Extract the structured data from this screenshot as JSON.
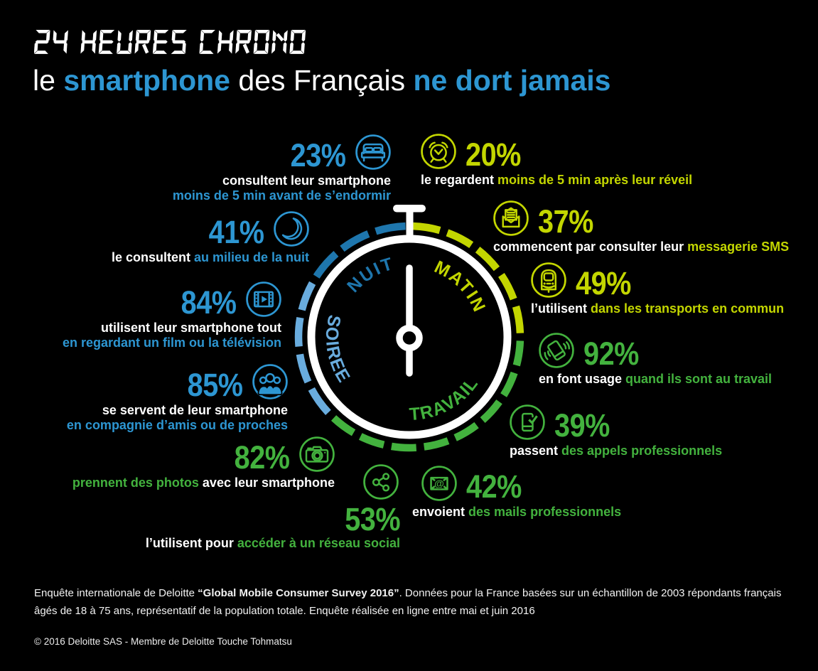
{
  "colors": {
    "blue": "#2D96D2",
    "dark_blue": "#1E76AD",
    "light_blue": "#69ACDE",
    "yellow_green": "#C3D600",
    "green": "#43B23E",
    "white": "#FFFFFF",
    "background": "#000000"
  },
  "header": {
    "title": "24 HEURES CHRONO",
    "subtitle_parts": [
      {
        "text": "le ",
        "highlight": false
      },
      {
        "text": "smartphone",
        "highlight": true
      },
      {
        "text": " des Français ",
        "highlight": false
      },
      {
        "text": "ne dort jamais",
        "highlight": true
      }
    ]
  },
  "stopwatch": {
    "labels": [
      {
        "text": "NUIT",
        "color_key": "dark_blue",
        "position": "top-left"
      },
      {
        "text": "MATIN",
        "color_key": "yellow_green",
        "position": "top-right"
      },
      {
        "text": "SOIREE",
        "color_key": "light_blue",
        "position": "bottom-left"
      },
      {
        "text": "TRAVAIL",
        "color_key": "green",
        "position": "bottom-right"
      }
    ],
    "ring_quadrants": [
      {
        "period": "NUIT",
        "color_key": "dark_blue"
      },
      {
        "period": "MATIN",
        "color_key": "yellow_green"
      },
      {
        "period": "TRAVAIL",
        "color_key": "green"
      },
      {
        "period": "SOIREE",
        "color_key": "light_blue"
      }
    ]
  },
  "stats": [
    {
      "id": "bedtime",
      "value": "23%",
      "icon": "bed-icon",
      "color_key": "blue",
      "side": "left",
      "lines": [
        [
          {
            "t": "consultent leur smartphone",
            "hl": false
          }
        ],
        [
          {
            "t": "moins de 5 min avant de s’endormir",
            "hl": true
          }
        ]
      ]
    },
    {
      "id": "midnight",
      "value": "41%",
      "icon": "moon-icon",
      "color_key": "blue",
      "side": "left",
      "lines": [
        [
          {
            "t": "le consultent ",
            "hl": false
          },
          {
            "t": "au milieu de la nuit",
            "hl": true
          }
        ]
      ]
    },
    {
      "id": "tv",
      "value": "84%",
      "icon": "film-icon",
      "color_key": "blue",
      "side": "left",
      "lines": [
        [
          {
            "t": "utilisent leur smartphone tout",
            "hl": false
          }
        ],
        [
          {
            "t": "en regardant un film ou la télévision",
            "hl": true
          }
        ]
      ]
    },
    {
      "id": "friends",
      "value": "85%",
      "icon": "people-icon",
      "color_key": "blue",
      "side": "left",
      "lines": [
        [
          {
            "t": "se servent de leur smartphone",
            "hl": false
          }
        ],
        [
          {
            "t": "en compagnie d’amis ou de proches",
            "hl": true
          }
        ]
      ]
    },
    {
      "id": "photos",
      "value": "82%",
      "icon": "camera-icon",
      "color_key": "green",
      "side": "left",
      "lines": [
        [
          {
            "t": "prennent des photos",
            "hl": true
          },
          {
            "t": " avec leur smartphone",
            "hl": false
          }
        ]
      ]
    },
    {
      "id": "social",
      "value": "53%",
      "icon": "share-icon",
      "color_key": "green",
      "side": "stack",
      "lines": [
        [
          {
            "t": "l’utilisent pour ",
            "hl": false
          },
          {
            "t": "accéder à un réseau social",
            "hl": true
          }
        ]
      ]
    },
    {
      "id": "wakeup",
      "value": "20%",
      "icon": "alarm-icon",
      "color_key": "yellow_green",
      "side": "right",
      "lines": [
        [
          {
            "t": "le regardent ",
            "hl": false
          },
          {
            "t": "moins de 5 min après leur réveil",
            "hl": true
          }
        ]
      ]
    },
    {
      "id": "sms",
      "value": "37%",
      "icon": "sms-icon",
      "color_key": "yellow_green",
      "side": "right",
      "lines": [
        [
          {
            "t": "commencent par consulter leur ",
            "hl": false
          },
          {
            "t": "messagerie SMS",
            "hl": true
          }
        ]
      ]
    },
    {
      "id": "transports",
      "value": "49%",
      "icon": "train-icon",
      "color_key": "yellow_green",
      "side": "right",
      "lines": [
        [
          {
            "t": "l’utilisent ",
            "hl": false
          },
          {
            "t": "dans les transports en commun",
            "hl": true
          }
        ]
      ]
    },
    {
      "id": "work",
      "value": "92%",
      "icon": "vibrate-icon",
      "color_key": "green",
      "side": "right",
      "lines": [
        [
          {
            "t": "en font usage ",
            "hl": false
          },
          {
            "t": "quand ils sont au travail",
            "hl": true
          }
        ]
      ]
    },
    {
      "id": "calls",
      "value": "39%",
      "icon": "phone-check-icon",
      "color_key": "green",
      "side": "right",
      "lines": [
        [
          {
            "t": "passent ",
            "hl": false
          },
          {
            "t": "des appels professionnels",
            "hl": true
          }
        ]
      ]
    },
    {
      "id": "mails",
      "value": "42%",
      "icon": "mail-at-icon",
      "color_key": "green",
      "side": "right",
      "lines": [
        [
          {
            "t": "envoient ",
            "hl": false
          },
          {
            "t": "des mails professionnels",
            "hl": true
          }
        ]
      ]
    }
  ],
  "footer": {
    "source_parts": [
      {
        "t": "Enquête internationale de Deloitte ",
        "b": false
      },
      {
        "t": "“Global Mobile Consumer Survey 2016”",
        "b": true
      },
      {
        "t": ". Données pour la France basées sur un échantillon de 2003 répondants français âgés de 18 à 75 ans, représentatif de la population totale. Enquête réalisée en ligne entre mai et juin 2016",
        "b": false
      }
    ],
    "copyright": "© 2016 Deloitte SAS - Membre de Deloitte Touche Tohmatsu"
  },
  "chart_data": {
    "type": "bar",
    "title": "24 heures chrono — le smartphone des Français ne dort jamais",
    "units": "%",
    "categories": [
      "consultent leur smartphone moins de 5 min avant de s’endormir",
      "le consultent au milieu de la nuit",
      "le regardent moins de 5 min après leur réveil",
      "commencent par consulter leur messagerie SMS",
      "l’utilisent dans les transports en commun",
      "en font usage quand ils sont au travail",
      "passent des appels professionnels",
      "envoient des mails professionnels",
      "utilisent leur smartphone tout en regardant un film ou la télévision",
      "se servent de leur smartphone en compagnie d’amis ou de proches",
      "prennent des photos avec leur smartphone",
      "l’utilisent pour accéder à un réseau social"
    ],
    "values": [
      23,
      41,
      20,
      37,
      49,
      92,
      39,
      42,
      84,
      85,
      82,
      53
    ],
    "groups": [
      "NUIT",
      "NUIT",
      "MATIN",
      "MATIN",
      "MATIN",
      "TRAVAIL",
      "TRAVAIL",
      "TRAVAIL",
      "SOIREE",
      "SOIREE",
      "SOIREE",
      "SOIREE"
    ]
  }
}
